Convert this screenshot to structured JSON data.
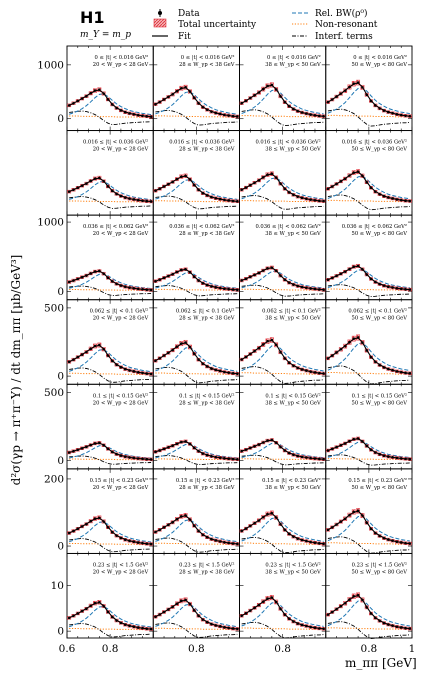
{
  "header": {
    "experiment": "H1",
    "subtitle": "m_Y = m_p"
  },
  "legend": {
    "data": "Data",
    "total_uncertainty": "Total uncertainty",
    "fit": "Fit",
    "rel_bw": "Rel. BW(ρ⁰)",
    "non_resonant": "Non-resonant",
    "interference": "Interf. terms"
  },
  "axes": {
    "xlabel": "m_ππ [GeV]",
    "ylabel": "d²σ(γp → π⁺π⁻Y) / dt dm_ππ  [μb/GeV³]"
  },
  "chart_data": {
    "type": "line",
    "grid_rows": 7,
    "grid_cols": 4,
    "xlim": [
      0.6,
      1.0
    ],
    "x_ticks": [
      0.6,
      0.8,
      1.0
    ],
    "x_tick_labels": [
      "0.6",
      "0.8",
      "1"
    ],
    "x": [
      0.61,
      0.63,
      0.65,
      0.67,
      0.69,
      0.71,
      0.73,
      0.75,
      0.77,
      0.79,
      0.81,
      0.83,
      0.85,
      0.87,
      0.89,
      0.91,
      0.93,
      0.95,
      0.97,
      0.99
    ],
    "w_bins": [
      "20 < W_γp < 28 GeV",
      "28 ≤ W_γp < 38 GeV",
      "38 ≤ W_γp < 50 GeV",
      "50 ≤ W_γp < 80 GeV"
    ],
    "w_scale": [
      0.86,
      0.93,
      1.0,
      1.07
    ],
    "shape": {
      "data": [
        0.45,
        0.52,
        0.6,
        0.68,
        0.76,
        0.86,
        0.95,
        0.98,
        0.85,
        0.65,
        0.48,
        0.36,
        0.28,
        0.22,
        0.18,
        0.15,
        0.12,
        0.1,
        0.08,
        0.07
      ],
      "fit": [
        0.45,
        0.52,
        0.6,
        0.68,
        0.77,
        0.86,
        0.94,
        0.97,
        0.86,
        0.66,
        0.49,
        0.37,
        0.29,
        0.23,
        0.18,
        0.15,
        0.12,
        0.1,
        0.08,
        0.07
      ],
      "rel_bw": [
        0.15,
        0.2,
        0.26,
        0.34,
        0.44,
        0.57,
        0.71,
        0.82,
        0.84,
        0.75,
        0.62,
        0.5,
        0.41,
        0.34,
        0.28,
        0.24,
        0.21,
        0.18,
        0.16,
        0.14
      ],
      "non_resonant": [
        0.09,
        0.09,
        0.09,
        0.08,
        0.08,
        0.08,
        0.08,
        0.07,
        0.07,
        0.07,
        0.07,
        0.06,
        0.06,
        0.06,
        0.06,
        0.06,
        0.05,
        0.05,
        0.05,
        0.05
      ],
      "interference": [
        0.21,
        0.23,
        0.25,
        0.26,
        0.24,
        0.2,
        0.14,
        0.05,
        -0.06,
        -0.15,
        -0.2,
        -0.19,
        -0.17,
        -0.15,
        -0.14,
        -0.13,
        -0.12,
        -0.11,
        -0.11,
        -0.1
      ]
    },
    "rows": [
      {
        "t_bin": "0 ≤ |t| < 0.016 GeV²",
        "y_ticks": [
          0,
          1000
        ],
        "y_tick_labels": [
          "0",
          "1000"
        ],
        "ylim": [
          -220,
          1350
        ],
        "peak": 640
      },
      {
        "t_bin": "0.016 ≤ |t| < 0.036 GeV²",
        "y_ticks": [],
        "y_tick_labels": [],
        "ylim": [
          -220,
          1350
        ],
        "peak": 560
      },
      {
        "t_bin": "0.036 ≤ |t| < 0.062 GeV²",
        "y_ticks": [
          0,
          1000
        ],
        "y_tick_labels": [
          "0",
          "1000"
        ],
        "ylim": [
          -120,
          1100
        ],
        "peak": 350
      },
      {
        "t_bin": "0.062 ≤ |t| < 0.1 GeV²",
        "y_ticks": [
          0,
          500
        ],
        "y_tick_labels": [
          "0",
          "500"
        ],
        "ylim": [
          -60,
          560
        ],
        "peak": 270
      },
      {
        "t_bin": "0.1 ≤ |t| < 0.15 GeV²",
        "y_ticks": [
          0,
          500
        ],
        "y_tick_labels": [
          "0",
          "500"
        ],
        "ylim": [
          -60,
          560
        ],
        "peak": 155
      },
      {
        "t_bin": "0.15 ≤ |t| < 0.23 GeV²",
        "y_ticks": [
          0,
          200
        ],
        "y_tick_labels": [
          "0",
          "200"
        ],
        "ylim": [
          -22,
          230
        ],
        "peak": 100
      },
      {
        "t_bin": "0.23 ≤ |t| < 1.5 GeV²",
        "y_ticks": [
          0,
          10
        ],
        "y_tick_labels": [
          "0",
          "10"
        ],
        "ylim": [
          -1.5,
          17
        ],
        "peak": 7.5
      }
    ],
    "colors": {
      "data": "#000000",
      "total_uncertainty": "#e0303a",
      "fit": "#000000",
      "rel_bw": "#1f77b4",
      "non_resonant": "#ff7f0e",
      "interference": "#000000"
    }
  }
}
